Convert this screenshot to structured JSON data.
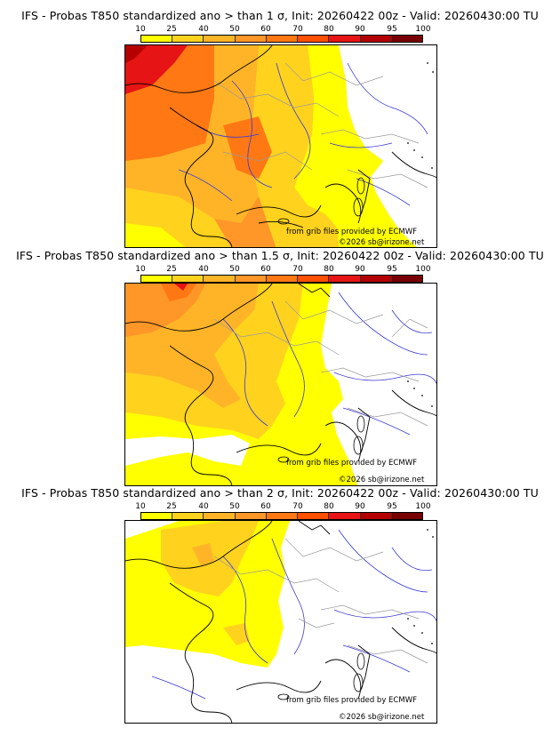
{
  "colorbar": {
    "ticks": [
      "10",
      "25",
      "40",
      "50",
      "60",
      "70",
      "80",
      "90",
      "95",
      "100"
    ],
    "colors": [
      "#ffff00",
      "#ffd21e",
      "#ffb428",
      "#ff9628",
      "#ff7814",
      "#ff5000",
      "#e61414",
      "#b40000",
      "#780000"
    ]
  },
  "panels": [
    {
      "title": "IFS - Probas T850  standardized ano > than 1 σ, Init: 20260422 00z - Valid: 20260430:00 TU",
      "credit_grib": "from grib files provided by ECMWF",
      "credit_copy": "©2026 sb@irizone.net"
    },
    {
      "title": "IFS - Probas T850  standardized ano > than 1.5 σ, Init: 20260422 00z - Valid: 20260430:00 TU",
      "credit_grib": "from grib files provided by ECMWF",
      "credit_copy": "©2026 sb@irizone.net"
    },
    {
      "title": "IFS - Probas T850  standardized ano > than 2 σ, Init: 20260422 00z - Valid: 20260430:00 TU",
      "credit_grib": "from grib files provided by ECMWF",
      "credit_copy": "©2026 sb@irizone.net"
    }
  ]
}
